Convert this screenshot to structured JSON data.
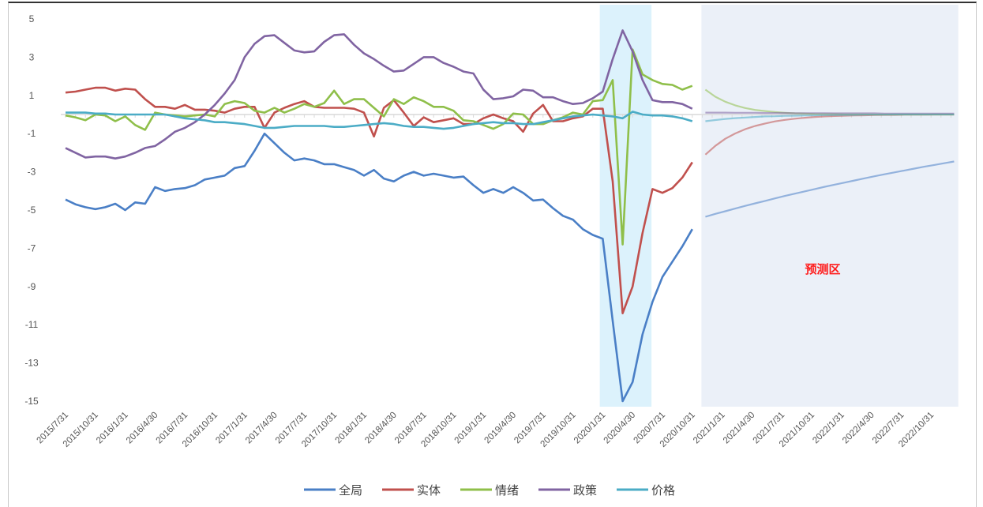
{
  "chart_data": {
    "type": "line",
    "title": "",
    "xlabel": "",
    "ylabel": "",
    "ylim": [
      -15,
      5
    ],
    "yticks": [
      5,
      3,
      1,
      -1,
      -3,
      -5,
      -7,
      -9,
      -11,
      -13,
      -15
    ],
    "x_start": "2015/7",
    "x_frequency": "monthly",
    "xtick_labels": [
      "2015/7/31",
      "2015/10/31",
      "2016/1/31",
      "2016/4/30",
      "2016/7/31",
      "2016/10/31",
      "2017/1/31",
      "2017/4/30",
      "2017/7/31",
      "2017/10/31",
      "2018/1/31",
      "2018/4/30",
      "2018/7/31",
      "2018/10/31",
      "2019/1/31",
      "2019/4/30",
      "2019/7/31",
      "2019/10/31",
      "2020/1/31",
      "2020/4/30",
      "2020/7/31",
      "2020/10/31",
      "2021/1/31",
      "2021/4/30",
      "2021/7/31",
      "2021/10/31",
      "2022/1/31",
      "2022/4/30",
      "2022/7/31",
      "2022/10/31"
    ],
    "legend_position": "bottom",
    "grid": false,
    "highlight_band": {
      "from_month_index": 53.7,
      "to_month_index": 58.9,
      "color": "#dcf2fc"
    },
    "forecast_region": {
      "from_month_index": 64,
      "to_month_index": 89.5,
      "label": "预测区",
      "color": "#ebf0f8",
      "label_color": "#ff1a1a"
    },
    "series": [
      {
        "name": "全局",
        "color": "#4a7fc6",
        "values": [
          -4.45,
          -4.7,
          -4.85,
          -4.95,
          -4.85,
          -4.67,
          -5.0,
          -4.6,
          -4.67,
          -3.8,
          -4.0,
          -3.9,
          -3.85,
          -3.7,
          -3.4,
          -3.3,
          -3.2,
          -2.8,
          -2.7,
          -1.9,
          -1.0,
          -1.5,
          -2.0,
          -2.4,
          -2.3,
          -2.4,
          -2.6,
          -2.6,
          -2.75,
          -2.9,
          -3.2,
          -2.9,
          -3.35,
          -3.5,
          -3.2,
          -3.0,
          -3.2,
          -3.1,
          -3.2,
          -3.3,
          -3.25,
          -3.7,
          -4.1,
          -3.9,
          -4.1,
          -3.8,
          -4.1,
          -4.5,
          -4.45,
          -4.9,
          -5.3,
          -5.5,
          -6.0,
          -6.3,
          -6.5,
          -10.8,
          -15.0,
          -14.0,
          -11.5,
          -9.8,
          -8.5,
          -7.7,
          -6.9,
          -6.0
        ],
        "forecast": [
          -5.35,
          -5.2,
          -5.06,
          -4.92,
          -4.78,
          -4.65,
          -4.52,
          -4.39,
          -4.26,
          -4.14,
          -4.02,
          -3.9,
          -3.78,
          -3.67,
          -3.56,
          -3.45,
          -3.34,
          -3.23,
          -3.13,
          -3.03,
          -2.93,
          -2.83,
          -2.73,
          -2.64,
          -2.55,
          -2.46
        ]
      },
      {
        "name": "实体",
        "color": "#c0504d",
        "values": [
          1.15,
          1.2,
          1.3,
          1.4,
          1.4,
          1.25,
          1.35,
          1.3,
          0.8,
          0.4,
          0.4,
          0.3,
          0.5,
          0.25,
          0.25,
          0.2,
          0.1,
          0.3,
          0.4,
          0.4,
          -0.7,
          0.1,
          0.35,
          0.55,
          0.7,
          0.4,
          0.35,
          0.35,
          0.35,
          0.3,
          0.1,
          -1.15,
          0.35,
          0.75,
          0.1,
          -0.6,
          -0.15,
          -0.4,
          -0.3,
          -0.2,
          -0.5,
          -0.5,
          -0.2,
          0.0,
          -0.2,
          -0.35,
          -0.9,
          0.05,
          0.5,
          -0.35,
          -0.35,
          -0.2,
          -0.1,
          0.3,
          0.3,
          -3.5,
          -10.4,
          -9.0,
          -6.2,
          -3.9,
          -4.1,
          -3.85,
          -3.3,
          -2.5
        ],
        "forecast": [
          -2.1,
          -1.64,
          -1.27,
          -0.99,
          -0.77,
          -0.6,
          -0.47,
          -0.36,
          -0.28,
          -0.22,
          -0.17,
          -0.13,
          -0.1,
          -0.08,
          -0.06,
          -0.05,
          -0.04,
          -0.03,
          -0.02,
          -0.02,
          -0.01,
          -0.01,
          -0.01,
          0,
          0,
          0
        ]
      },
      {
        "name": "情绪",
        "color": "#8fbf4a",
        "values": [
          -0.05,
          -0.15,
          -0.3,
          0.0,
          -0.05,
          -0.35,
          -0.1,
          -0.55,
          -0.8,
          0.1,
          0.0,
          -0.05,
          -0.1,
          -0.05,
          0.0,
          -0.1,
          0.55,
          0.7,
          0.6,
          0.2,
          0.1,
          0.35,
          0.1,
          0.3,
          0.55,
          0.4,
          0.6,
          1.25,
          0.55,
          0.8,
          0.8,
          0.35,
          -0.1,
          0.8,
          0.55,
          0.9,
          0.7,
          0.4,
          0.4,
          0.2,
          -0.3,
          -0.35,
          -0.55,
          -0.75,
          -0.5,
          0.05,
          0.0,
          -0.5,
          -0.5,
          -0.3,
          -0.15,
          0.1,
          0.0,
          0.7,
          0.75,
          1.8,
          -6.8,
          3.4,
          2.1,
          1.8,
          1.6,
          1.55,
          1.3,
          1.5
        ],
        "forecast": [
          1.3,
          0.93,
          0.67,
          0.48,
          0.34,
          0.24,
          0.18,
          0.13,
          0.09,
          0.06,
          0.05,
          0.03,
          0.02,
          0.02,
          0.01,
          0.01,
          0.01,
          0,
          0,
          0,
          0,
          0,
          0,
          0,
          0,
          0
        ]
      },
      {
        "name": "政策",
        "color": "#8064a2",
        "values": [
          -1.75,
          -2.0,
          -2.25,
          -2.2,
          -2.2,
          -2.3,
          -2.2,
          -2.0,
          -1.75,
          -1.65,
          -1.3,
          -0.9,
          -0.7,
          -0.4,
          0.0,
          0.5,
          1.1,
          1.8,
          3.0,
          3.7,
          4.1,
          4.15,
          3.75,
          3.35,
          3.25,
          3.3,
          3.8,
          4.15,
          4.2,
          3.65,
          3.2,
          2.9,
          2.55,
          2.25,
          2.3,
          2.65,
          3.0,
          3.0,
          2.7,
          2.5,
          2.25,
          2.15,
          1.3,
          0.8,
          0.85,
          0.95,
          1.3,
          1.25,
          0.9,
          0.9,
          0.7,
          0.55,
          0.6,
          0.85,
          1.2,
          2.9,
          4.4,
          3.3,
          1.8,
          0.75,
          0.65,
          0.65,
          0.55,
          0.3
        ],
        "forecast": [
          0.1,
          0.1,
          0.1,
          0.09,
          0.09,
          0.09,
          0.08,
          0.08,
          0.08,
          0.07,
          0.07,
          0.07,
          0.07,
          0.06,
          0.06,
          0.06,
          0.06,
          0.06,
          0.05,
          0.05,
          0.05,
          0.05,
          0.05,
          0.05,
          0.05,
          0.05
        ]
      },
      {
        "name": "价格",
        "color": "#4bacc6",
        "values": [
          0.1,
          0.1,
          0.1,
          0.05,
          0.05,
          0.0,
          0.0,
          0.0,
          0.0,
          0.0,
          0.0,
          -0.1,
          -0.2,
          -0.25,
          -0.3,
          -0.4,
          -0.4,
          -0.45,
          -0.5,
          -0.6,
          -0.7,
          -0.7,
          -0.65,
          -0.6,
          -0.6,
          -0.6,
          -0.6,
          -0.65,
          -0.65,
          -0.6,
          -0.55,
          -0.5,
          -0.45,
          -0.5,
          -0.6,
          -0.65,
          -0.65,
          -0.7,
          -0.75,
          -0.7,
          -0.6,
          -0.5,
          -0.45,
          -0.4,
          -0.45,
          -0.45,
          -0.5,
          -0.5,
          -0.4,
          -0.3,
          -0.2,
          -0.1,
          -0.05,
          0.0,
          -0.05,
          -0.1,
          -0.2,
          0.15,
          0.0,
          -0.05,
          -0.05,
          -0.1,
          -0.2,
          -0.35
        ],
        "forecast": [
          -0.35,
          -0.29,
          -0.23,
          -0.19,
          -0.16,
          -0.13,
          -0.1,
          -0.09,
          -0.07,
          -0.06,
          -0.05,
          -0.04,
          -0.03,
          -0.03,
          -0.02,
          -0.02,
          -0.01,
          -0.01,
          -0.01,
          0,
          0,
          0,
          0,
          0,
          0,
          0
        ]
      }
    ]
  }
}
